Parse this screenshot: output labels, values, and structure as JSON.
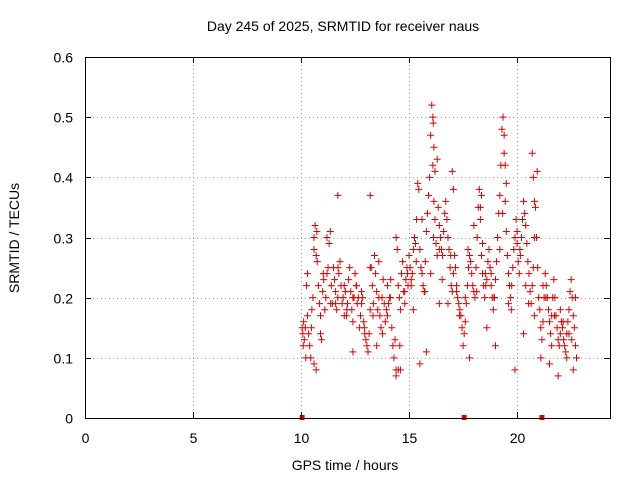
{
  "chart_data": {
    "type": "scatter",
    "title": "Day 245 of 2025, SRMTID for receiver naus",
    "xlabel": "GPS time / hours",
    "ylabel": "SRMTID / TECUs",
    "xlim": [
      0,
      24.3
    ],
    "ylim": [
      0,
      0.6
    ],
    "x_ticks": [
      0,
      5,
      10,
      15,
      20
    ],
    "y_ticks": [
      0,
      0.1,
      0.2,
      0.3,
      0.4,
      0.5,
      0.6
    ],
    "x_tick_labels": [
      "0",
      "5",
      "10",
      "15",
      "20"
    ],
    "y_tick_labels": [
      "0",
      "0.1",
      "0.2",
      "0.3",
      "0.4",
      "0.5",
      "0.6"
    ],
    "grid": true,
    "marker": "+",
    "series": [
      {
        "name": "SRMTID",
        "color": "#e00000",
        "x": [
          10.05,
          10.08,
          10.12,
          10.15,
          10.2,
          10.25,
          10.3,
          10.35,
          10.4,
          10.45,
          10.5,
          10.55,
          10.6,
          10.65,
          10.7,
          10.75,
          10.8,
          10.85,
          10.9,
          10.95,
          11.0,
          11.05,
          11.1,
          11.15,
          11.2,
          11.25,
          11.3,
          11.35,
          11.4,
          11.45,
          11.5,
          11.55,
          11.6,
          11.65,
          11.7,
          11.75,
          11.8,
          11.85,
          11.9,
          11.95,
          12.0,
          12.05,
          12.1,
          12.15,
          12.2,
          12.25,
          12.3,
          12.35,
          12.4,
          12.45,
          12.5,
          12.55,
          12.6,
          12.65,
          12.7,
          12.75,
          12.8,
          12.85,
          12.9,
          12.95,
          13.0,
          13.05,
          13.1,
          13.15,
          13.2,
          13.25,
          13.3,
          13.35,
          13.4,
          13.45,
          13.5,
          13.55,
          13.6,
          13.65,
          13.7,
          13.75,
          13.8,
          13.85,
          13.9,
          13.95,
          14.0,
          14.05,
          14.1,
          14.15,
          14.2,
          14.25,
          14.3,
          14.35,
          14.4,
          14.45,
          14.5,
          14.55,
          14.6,
          14.65,
          14.7,
          14.75,
          14.8,
          14.85,
          14.9,
          14.95,
          15.0,
          15.05,
          15.1,
          15.15,
          15.2,
          15.25,
          15.3,
          15.35,
          15.4,
          15.45,
          15.5,
          15.55,
          15.6,
          15.65,
          15.7,
          15.75,
          15.8,
          15.85,
          15.9,
          15.95,
          16.0,
          16.05,
          16.1,
          16.15,
          16.2,
          16.25,
          16.3,
          16.35,
          16.4,
          16.45,
          16.5,
          16.55,
          16.6,
          16.65,
          16.7,
          16.75,
          16.8,
          16.85,
          16.9,
          16.95,
          17.0,
          17.05,
          17.1,
          17.15,
          17.2,
          17.25,
          17.3,
          17.35,
          17.4,
          17.45,
          17.5,
          17.55,
          17.6,
          17.65,
          17.7,
          17.75,
          17.8,
          17.85,
          17.9,
          17.95,
          18.0,
          18.05,
          18.1,
          18.15,
          18.2,
          18.25,
          18.3,
          18.35,
          18.4,
          18.45,
          18.5,
          18.55,
          18.6,
          18.65,
          18.7,
          18.75,
          18.8,
          18.85,
          18.9,
          18.95,
          19.0,
          19.05,
          19.1,
          19.15,
          19.2,
          19.25,
          19.3,
          19.35,
          19.4,
          19.45,
          19.5,
          19.55,
          19.6,
          19.65,
          19.7,
          19.75,
          19.8,
          19.85,
          19.9,
          19.95,
          20.0,
          20.05,
          20.1,
          20.15,
          20.2,
          20.25,
          20.3,
          20.35,
          20.4,
          20.45,
          20.5,
          20.55,
          20.6,
          20.65,
          20.7,
          20.75,
          20.8,
          20.85,
          20.9,
          20.95,
          21.0,
          21.05,
          21.1,
          21.15,
          21.2,
          21.25,
          21.3,
          21.35,
          21.4,
          21.45,
          21.5,
          21.55,
          21.6,
          21.65,
          21.7,
          21.75,
          21.8,
          21.85,
          21.9,
          21.95,
          22.0,
          22.05,
          22.1,
          22.15,
          22.2,
          22.25,
          22.3,
          22.35,
          22.4,
          22.45,
          22.5,
          22.55,
          22.6,
          22.65,
          22.7,
          22.75,
          10.1,
          10.3,
          10.6,
          10.9,
          11.2,
          11.6,
          12.0,
          12.4,
          12.8,
          13.2,
          13.6,
          14.0,
          14.4,
          14.8,
          15.2,
          15.6,
          16.0,
          16.4,
          16.8,
          17.2,
          17.6,
          18.0,
          18.4,
          18.8,
          19.2,
          19.6,
          20.0,
          20.4,
          20.8,
          21.2,
          21.6,
          22.0,
          22.4,
          22.7,
          10.22,
          10.48,
          10.73,
          11.03,
          11.37,
          11.71,
          12.12,
          12.57,
          12.93,
          13.33,
          13.77,
          14.13,
          14.57,
          14.93,
          15.33,
          15.73,
          16.13,
          16.53,
          16.93,
          17.33,
          17.73,
          18.13,
          18.53,
          18.93,
          19.33,
          19.73,
          20.13,
          20.53,
          20.93,
          21.33,
          21.73,
          22.13,
          22.53,
          16.1,
          16.12,
          16.15,
          16.2,
          16.3,
          19.4,
          19.45,
          19.5,
          20.7,
          20.75,
          20.8,
          17.0,
          17.05,
          18.3,
          18.35,
          15.5,
          15.8,
          13.2,
          14.4,
          14.5,
          10.6,
          10.7,
          11.7,
          12.4,
          13.5,
          14.6,
          15.1,
          16.4,
          17.8,
          18.6,
          19.0,
          19.9,
          20.3,
          21.1,
          21.5,
          21.9,
          22.3,
          22.6
        ],
        "y": [
          0.15,
          0.14,
          0.16,
          0.13,
          0.15,
          0.22,
          0.24,
          0.14,
          0.12,
          0.1,
          0.18,
          0.2,
          0.3,
          0.32,
          0.27,
          0.26,
          0.22,
          0.19,
          0.17,
          0.13,
          0.21,
          0.23,
          0.18,
          0.2,
          0.24,
          0.25,
          0.29,
          0.31,
          0.22,
          0.19,
          0.25,
          0.23,
          0.21,
          0.18,
          0.2,
          0.24,
          0.26,
          0.22,
          0.19,
          0.2,
          0.22,
          0.21,
          0.17,
          0.19,
          0.23,
          0.25,
          0.21,
          0.18,
          0.16,
          0.2,
          0.24,
          0.22,
          0.19,
          0.2,
          0.15,
          0.17,
          0.19,
          0.2,
          0.16,
          0.14,
          0.13,
          0.12,
          0.11,
          0.14,
          0.18,
          0.25,
          0.22,
          0.19,
          0.27,
          0.24,
          0.21,
          0.18,
          0.2,
          0.17,
          0.15,
          0.2,
          0.23,
          0.19,
          0.16,
          0.18,
          0.22,
          0.19,
          0.2,
          0.23,
          0.15,
          0.12,
          0.1,
          0.13,
          0.3,
          0.28,
          0.22,
          0.2,
          0.18,
          0.24,
          0.26,
          0.21,
          0.19,
          0.23,
          0.25,
          0.22,
          0.27,
          0.25,
          0.23,
          0.24,
          0.28,
          0.3,
          0.29,
          0.33,
          0.39,
          0.38,
          0.28,
          0.25,
          0.24,
          0.22,
          0.21,
          0.26,
          0.31,
          0.34,
          0.37,
          0.4,
          0.47,
          0.52,
          0.42,
          0.36,
          0.33,
          0.29,
          0.27,
          0.35,
          0.32,
          0.3,
          0.28,
          0.27,
          0.31,
          0.34,
          0.36,
          0.33,
          0.3,
          0.28,
          0.25,
          0.22,
          0.21,
          0.24,
          0.27,
          0.25,
          0.22,
          0.2,
          0.19,
          0.18,
          0.17,
          0.15,
          0.12,
          0.14,
          0.16,
          0.19,
          0.22,
          0.25,
          0.27,
          0.26,
          0.24,
          0.22,
          0.21,
          0.2,
          0.25,
          0.3,
          0.35,
          0.38,
          0.33,
          0.27,
          0.24,
          0.22,
          0.2,
          0.22,
          0.23,
          0.26,
          0.28,
          0.25,
          0.22,
          0.2,
          0.18,
          0.2,
          0.23,
          0.26,
          0.3,
          0.34,
          0.37,
          0.42,
          0.48,
          0.5,
          0.44,
          0.36,
          0.31,
          0.27,
          0.24,
          0.22,
          0.2,
          0.22,
          0.25,
          0.28,
          0.3,
          0.33,
          0.29,
          0.26,
          0.24,
          0.27,
          0.3,
          0.33,
          0.36,
          0.34,
          0.32,
          0.29,
          0.26,
          0.24,
          0.21,
          0.19,
          0.22,
          0.25,
          0.3,
          0.35,
          0.3,
          0.25,
          0.2,
          0.18,
          0.15,
          0.13,
          0.16,
          0.2,
          0.24,
          0.22,
          0.2,
          0.18,
          0.16,
          0.14,
          0.17,
          0.2,
          0.23,
          0.2,
          0.17,
          0.15,
          0.13,
          0.12,
          0.14,
          0.16,
          0.15,
          0.13,
          0.12,
          0.11,
          0.14,
          0.16,
          0.18,
          0.21,
          0.23,
          0.2,
          0.17,
          0.15,
          0.12,
          0.1,
          0.12,
          0.17,
          0.28,
          0.14,
          0.3,
          0.19,
          0.17,
          0.2,
          0.21,
          0.25,
          0.26,
          0.17,
          0.08,
          0.21,
          0.18,
          0.33,
          0.24,
          0.28,
          0.19,
          0.21,
          0.2,
          0.32,
          0.29,
          0.24,
          0.28,
          0.19,
          0.31,
          0.22,
          0.17,
          0.22,
          0.12,
          0.18,
          0.14,
          0.2,
          0.1,
          0.15,
          0.31,
          0.24,
          0.19,
          0.25,
          0.18,
          0.22,
          0.15,
          0.17,
          0.14,
          0.2,
          0.12,
          0.24,
          0.26,
          0.21,
          0.3,
          0.23,
          0.27,
          0.17,
          0.28,
          0.21,
          0.24,
          0.2,
          0.34,
          0.18,
          0.28,
          0.19,
          0.41,
          0.2,
          0.17,
          0.16,
          0.13,
          0.5,
          0.49,
          0.45,
          0.41,
          0.43,
          0.47,
          0.42,
          0.39,
          0.44,
          0.4,
          0.36,
          0.41,
          0.38,
          0.35,
          0.37,
          0.09,
          0.11,
          0.37,
          0.07,
          0.08,
          0.09,
          0.08,
          0.37,
          0.11,
          0.12,
          0.08,
          0.22,
          0.19,
          0.1,
          0.15,
          0.12,
          0.08,
          0.14,
          0.1,
          0.09,
          0.07,
          0.1,
          0.08
        ]
      }
    ],
    "baseline_markers_x": [
      10.05,
      17.55,
      21.15
    ]
  }
}
